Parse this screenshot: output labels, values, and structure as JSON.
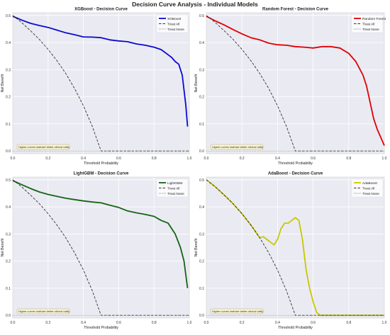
{
  "figure": {
    "title": "Decision Curve Analysis - Individual Models",
    "annotation": "Higher curves indicate better clinical utility",
    "treat_all_label": "Treat All",
    "treat_none_label": "Treat None"
  },
  "chart_data": [
    {
      "type": "line",
      "title": "XGBoost - Decision Curve",
      "xlabel": "Threshold Probability",
      "ylabel": "Net Benefit",
      "xlim": [
        0,
        1
      ],
      "ylim": [
        -0.01,
        0.51
      ],
      "xticks": [
        "0.0",
        "0.2",
        "0.4",
        "0.6",
        "0.8",
        "1.0"
      ],
      "yticks": [
        "0.0",
        "0.1",
        "0.2",
        "0.3",
        "0.4",
        "0.5"
      ],
      "grid": true,
      "legend_position": "top-right",
      "color": "#0a0ad2",
      "series": [
        {
          "name": "XGBoost",
          "x": [
            0.0,
            0.05,
            0.1,
            0.15,
            0.2,
            0.25,
            0.3,
            0.35,
            0.4,
            0.45,
            0.5,
            0.55,
            0.6,
            0.65,
            0.7,
            0.75,
            0.8,
            0.84,
            0.88,
            0.9,
            0.92,
            0.94,
            0.96,
            0.98,
            0.99
          ],
          "y": [
            0.497,
            0.483,
            0.471,
            0.463,
            0.456,
            0.446,
            0.436,
            0.429,
            0.421,
            0.42,
            0.418,
            0.41,
            0.406,
            0.403,
            0.395,
            0.39,
            0.383,
            0.374,
            0.355,
            0.345,
            0.33,
            0.32,
            0.28,
            0.17,
            0.09
          ]
        },
        {
          "name": "Treat All",
          "x": [
            0.0,
            0.05,
            0.1,
            0.15,
            0.2,
            0.25,
            0.3,
            0.35,
            0.4,
            0.45,
            0.5,
            0.55,
            0.6,
            0.65,
            0.7,
            0.75,
            0.8,
            0.85,
            0.9,
            0.95,
            1.0
          ],
          "y": [
            0.5,
            0.474,
            0.444,
            0.412,
            0.375,
            0.333,
            0.286,
            0.231,
            0.167,
            0.091,
            0.0,
            0.0,
            0.0,
            0.0,
            0.0,
            0.0,
            0.0,
            0.0,
            0.0,
            0.0,
            0.0
          ]
        },
        {
          "name": "Treat None",
          "x": [
            0.0,
            1.0
          ],
          "y": [
            0.0,
            0.0
          ]
        }
      ]
    },
    {
      "type": "line",
      "title": "Random Forest - Decision Curve",
      "xlabel": "Threshold Probability",
      "ylabel": "Net Benefit",
      "xlim": [
        0,
        1
      ],
      "ylim": [
        -0.01,
        0.51
      ],
      "xticks": [
        "0.0",
        "0.2",
        "0.4",
        "0.6",
        "0.8",
        "1.0"
      ],
      "yticks": [
        "0.0",
        "0.1",
        "0.2",
        "0.3",
        "0.4",
        "0.5"
      ],
      "grid": true,
      "legend_position": "top-right",
      "color": "#e00000",
      "series": [
        {
          "name": "Random Forest",
          "x": [
            0.0,
            0.05,
            0.1,
            0.15,
            0.2,
            0.25,
            0.3,
            0.35,
            0.4,
            0.45,
            0.5,
            0.55,
            0.6,
            0.65,
            0.7,
            0.75,
            0.8,
            0.84,
            0.88,
            0.9,
            0.92,
            0.94,
            0.96,
            0.98,
            1.0
          ],
          "y": [
            0.497,
            0.48,
            0.465,
            0.448,
            0.432,
            0.418,
            0.41,
            0.398,
            0.392,
            0.39,
            0.385,
            0.383,
            0.38,
            0.385,
            0.385,
            0.38,
            0.36,
            0.33,
            0.28,
            0.24,
            0.18,
            0.12,
            0.08,
            0.05,
            0.02
          ]
        },
        {
          "name": "Treat All",
          "x": [
            0.0,
            0.05,
            0.1,
            0.15,
            0.2,
            0.25,
            0.3,
            0.35,
            0.4,
            0.45,
            0.5,
            0.55,
            0.6,
            0.65,
            0.7,
            0.75,
            0.8,
            0.85,
            0.9,
            0.95,
            1.0
          ],
          "y": [
            0.5,
            0.474,
            0.444,
            0.412,
            0.375,
            0.333,
            0.286,
            0.231,
            0.167,
            0.091,
            0.0,
            0.0,
            0.0,
            0.0,
            0.0,
            0.0,
            0.0,
            0.0,
            0.0,
            0.0,
            0.0
          ]
        },
        {
          "name": "Treat None",
          "x": [
            0.0,
            1.0
          ],
          "y": [
            0.0,
            0.0
          ]
        }
      ]
    },
    {
      "type": "line",
      "title": "LightGBM - Decision Curve",
      "xlabel": "Threshold Probability",
      "ylabel": "Net Benefit",
      "xlim": [
        0,
        1
      ],
      "ylim": [
        -0.01,
        0.51
      ],
      "xticks": [
        "0.0",
        "0.2",
        "0.4",
        "0.6",
        "0.8",
        "1.0"
      ],
      "yticks": [
        "0.0",
        "0.1",
        "0.2",
        "0.3",
        "0.4",
        "0.5"
      ],
      "grid": true,
      "legend_position": "top-right",
      "color": "#146414",
      "series": [
        {
          "name": "LightGBM",
          "x": [
            0.0,
            0.05,
            0.1,
            0.15,
            0.2,
            0.25,
            0.3,
            0.35,
            0.4,
            0.45,
            0.5,
            0.55,
            0.6,
            0.65,
            0.7,
            0.75,
            0.8,
            0.84,
            0.88,
            0.92,
            0.95,
            0.97,
            0.98,
            0.99
          ],
          "y": [
            0.497,
            0.482,
            0.468,
            0.455,
            0.446,
            0.439,
            0.432,
            0.427,
            0.422,
            0.418,
            0.415,
            0.406,
            0.398,
            0.385,
            0.378,
            0.372,
            0.365,
            0.35,
            0.34,
            0.3,
            0.25,
            0.2,
            0.15,
            0.1
          ]
        },
        {
          "name": "Treat All",
          "x": [
            0.0,
            0.05,
            0.1,
            0.15,
            0.2,
            0.25,
            0.3,
            0.35,
            0.4,
            0.45,
            0.5,
            0.55,
            0.6,
            0.65,
            0.7,
            0.75,
            0.8,
            0.85,
            0.9,
            0.95,
            1.0
          ],
          "y": [
            0.5,
            0.474,
            0.444,
            0.412,
            0.375,
            0.333,
            0.286,
            0.231,
            0.167,
            0.091,
            0.0,
            0.0,
            0.0,
            0.0,
            0.0,
            0.0,
            0.0,
            0.0,
            0.0,
            0.0,
            0.0
          ]
        },
        {
          "name": "Treat None",
          "x": [
            0.0,
            1.0
          ],
          "y": [
            0.0,
            0.0
          ]
        }
      ]
    },
    {
      "type": "line",
      "title": "AdaBoost - Decision Curve",
      "xlabel": "Threshold Probability",
      "ylabel": "Net Benefit",
      "xlim": [
        0,
        1
      ],
      "ylim": [
        -0.01,
        0.51
      ],
      "xticks": [
        "0.0",
        "0.2",
        "0.4",
        "0.6",
        "0.8",
        "1.0"
      ],
      "yticks": [
        "0.0",
        "0.1",
        "0.2",
        "0.3",
        "0.4",
        "0.5"
      ],
      "grid": true,
      "legend_position": "top-right",
      "color": "#c8c800",
      "series": [
        {
          "name": "AdaBoost",
          "x": [
            0.0,
            0.05,
            0.1,
            0.15,
            0.2,
            0.25,
            0.3,
            0.32,
            0.34,
            0.36,
            0.38,
            0.4,
            0.42,
            0.44,
            0.46,
            0.48,
            0.5,
            0.52,
            0.54,
            0.56,
            0.58,
            0.6,
            0.62,
            0.64,
            0.7,
            1.0
          ],
          "y": [
            0.5,
            0.474,
            0.444,
            0.412,
            0.375,
            0.333,
            0.286,
            0.29,
            0.28,
            0.27,
            0.26,
            0.28,
            0.32,
            0.34,
            0.34,
            0.35,
            0.36,
            0.35,
            0.28,
            0.17,
            0.1,
            0.05,
            0.01,
            0.0,
            0.0,
            0.0
          ]
        },
        {
          "name": "Treat All",
          "x": [
            0.0,
            0.05,
            0.1,
            0.15,
            0.2,
            0.25,
            0.3,
            0.35,
            0.4,
            0.45,
            0.5,
            0.55,
            0.6,
            0.65,
            0.7,
            0.75,
            0.8,
            0.85,
            0.9,
            0.95,
            1.0
          ],
          "y": [
            0.5,
            0.474,
            0.444,
            0.412,
            0.375,
            0.333,
            0.286,
            0.231,
            0.167,
            0.091,
            0.0,
            0.0,
            0.0,
            0.0,
            0.0,
            0.0,
            0.0,
            0.0,
            0.0,
            0.0,
            0.0
          ]
        },
        {
          "name": "Treat None",
          "x": [
            0.0,
            1.0
          ],
          "y": [
            0.0,
            0.0
          ]
        }
      ]
    }
  ]
}
